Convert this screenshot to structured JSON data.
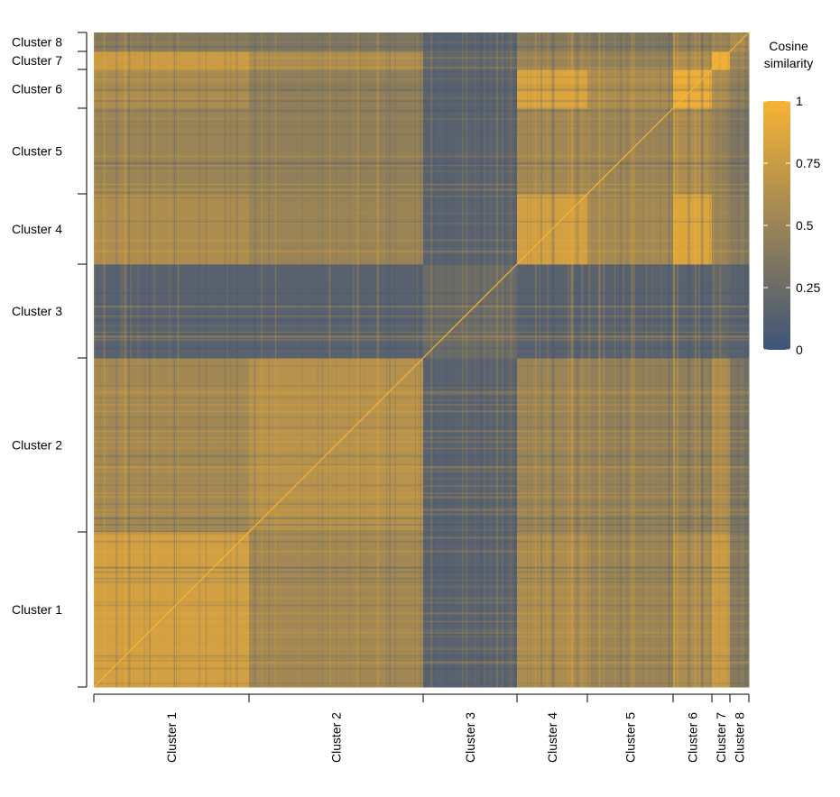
{
  "chart_data": {
    "type": "heatmap",
    "title": "",
    "legend": {
      "title_line1": "Cosine",
      "title_line2": "similarity",
      "placement": "right",
      "ticks": [
        "0",
        "0.25",
        "0.5",
        "0.75",
        "1"
      ],
      "range": [
        0,
        1
      ]
    },
    "colors": {
      "low": "#3d5478",
      "high": "#f7b334"
    },
    "clusters": [
      "Cluster 1",
      "Cluster 2",
      "Cluster 3",
      "Cluster 4",
      "Cluster 5",
      "Cluster 6",
      "Cluster 7",
      "Cluster 8"
    ],
    "cluster_sizes": [
      172,
      193,
      104,
      78,
      95,
      43,
      20,
      21
    ],
    "block_means": [
      [
        0.8,
        0.55,
        0.15,
        0.6,
        0.5,
        0.6,
        0.75,
        0.4
      ],
      [
        0.55,
        0.65,
        0.15,
        0.5,
        0.45,
        0.45,
        0.6,
        0.35
      ],
      [
        0.15,
        0.15,
        0.25,
        0.15,
        0.15,
        0.15,
        0.2,
        0.15
      ],
      [
        0.6,
        0.5,
        0.15,
        0.8,
        0.55,
        0.85,
        0.5,
        0.4
      ],
      [
        0.5,
        0.45,
        0.15,
        0.55,
        0.5,
        0.6,
        0.45,
        0.35
      ],
      [
        0.6,
        0.45,
        0.15,
        0.85,
        0.6,
        0.95,
        0.6,
        0.45
      ],
      [
        0.75,
        0.6,
        0.2,
        0.5,
        0.45,
        0.6,
        0.95,
        0.5
      ],
      [
        0.4,
        0.35,
        0.15,
        0.4,
        0.35,
        0.45,
        0.5,
        0.6
      ]
    ],
    "diagonal": 1
  }
}
